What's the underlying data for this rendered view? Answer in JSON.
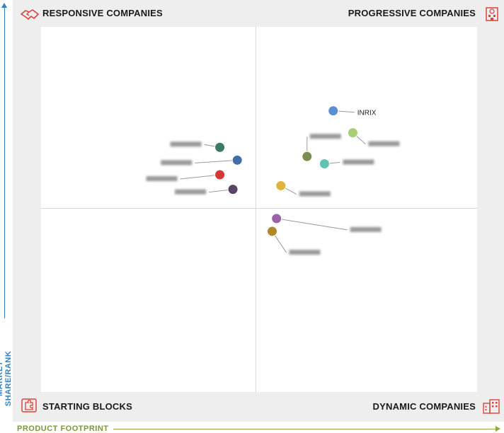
{
  "quadrants": {
    "top_left": "RESPONSIVE COMPANIES",
    "top_right": "PROGRESSIVE COMPANIES",
    "bottom_left": "STARTING BLOCKS",
    "bottom_right": "DYNAMIC COMPANIES"
  },
  "icons": {
    "top_left": "handshake-icon",
    "top_right": "building-icon",
    "bottom_left": "puzzle-icon",
    "bottom_right": "buildings-icon"
  },
  "axes": {
    "y_label": "MARKET SHARE/RANK",
    "x_label": "PRODUCT FOOTPRINT",
    "y_color": "#3a7fc0",
    "x_color": "#8aa845"
  },
  "chart_data": {
    "type": "scatter",
    "title": "",
    "xlabel": "PRODUCT FOOTPRINT",
    "ylabel": "MARKET SHARE/RANK",
    "xlim": [
      0,
      100
    ],
    "ylim": [
      0,
      100
    ],
    "grid": false,
    "points": [
      {
        "label": "INRIX",
        "x": 67,
        "y": 77,
        "color": "#5b8fcf",
        "label_visible": true
      },
      {
        "label": "",
        "x": 71.5,
        "y": 71,
        "color": "#a9cf74",
        "label_visible": false
      },
      {
        "label": "",
        "x": 61,
        "y": 64.5,
        "color": "#7a8f4e",
        "label_visible": false
      },
      {
        "label": "",
        "x": 65,
        "y": 62.5,
        "color": "#62c2b0",
        "label_visible": false
      },
      {
        "label": "",
        "x": 55,
        "y": 56.5,
        "color": "#e0b43a",
        "label_visible": false
      },
      {
        "label": "",
        "x": 41,
        "y": 67,
        "color": "#3c7a6a",
        "label_visible": false
      },
      {
        "label": "",
        "x": 45,
        "y": 63.5,
        "color": "#3f6ea8",
        "label_visible": false
      },
      {
        "label": "",
        "x": 41,
        "y": 59.5,
        "color": "#d23a33",
        "label_visible": false
      },
      {
        "label": "",
        "x": 44,
        "y": 55.5,
        "color": "#5a4466",
        "label_visible": false
      },
      {
        "label": "",
        "x": 54,
        "y": 47.5,
        "color": "#9c62a8",
        "label_visible": false
      },
      {
        "label": "",
        "x": 53,
        "y": 44,
        "color": "#b08a2a",
        "label_visible": false
      }
    ]
  }
}
